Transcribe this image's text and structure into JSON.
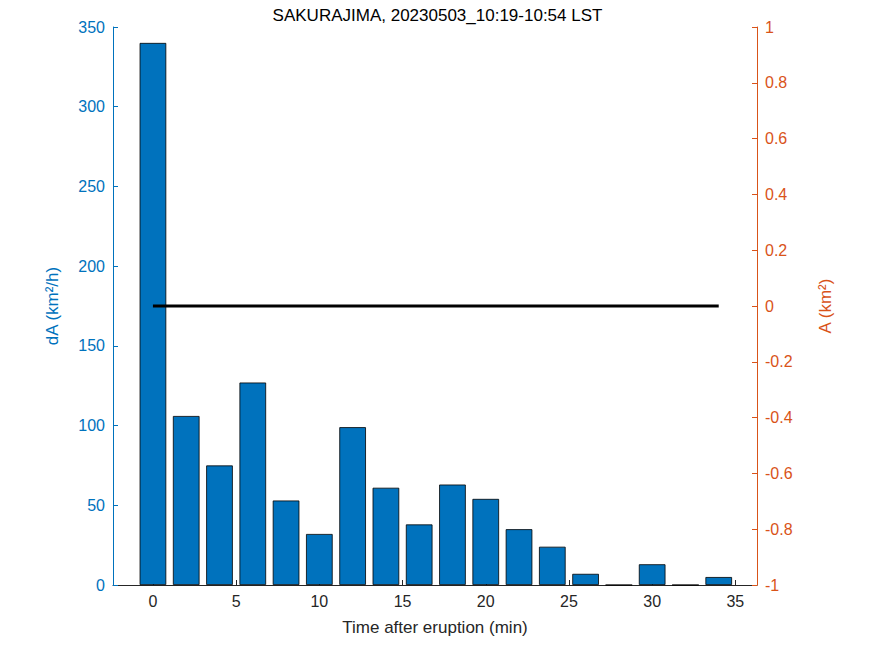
{
  "chart_data": {
    "type": "bar",
    "title": "SAKURAJIMA, 20230503_10:19-10:54 LST",
    "x_label": "Time after eruption (min)",
    "y_label": "dA (km²/h)",
    "y2_label": "A (km²)",
    "xlim": [
      -2.4,
      36.3
    ],
    "xticks": [
      0,
      5,
      10,
      15,
      20,
      25,
      30,
      35
    ],
    "ylim": [
      0,
      350
    ],
    "yticks": [
      0,
      50,
      100,
      150,
      200,
      250,
      300,
      350
    ],
    "y2lim": [
      -1,
      1
    ],
    "y2ticks": [
      -1,
      -0.8,
      -0.6,
      -0.4,
      -0.2,
      0,
      0.2,
      0.4,
      0.6,
      0.8,
      1
    ],
    "y_color": "#0072bd",
    "y2_color": "#d95319",
    "grid": false,
    "series": [
      {
        "type": "bar",
        "color": "#0072bd",
        "x": [
          0,
          2,
          4,
          6,
          8,
          10,
          12,
          14,
          16,
          18,
          20,
          22,
          24,
          26,
          28,
          30,
          32,
          34
        ],
        "values": [
          340,
          106,
          75,
          127,
          53,
          32,
          99,
          61,
          38,
          63,
          54,
          35,
          24,
          7,
          0,
          13,
          0,
          5
        ]
      },
      {
        "type": "line",
        "axis": "y2",
        "color": "#000000",
        "x": [
          0,
          34
        ],
        "values": [
          0,
          0
        ]
      }
    ]
  }
}
